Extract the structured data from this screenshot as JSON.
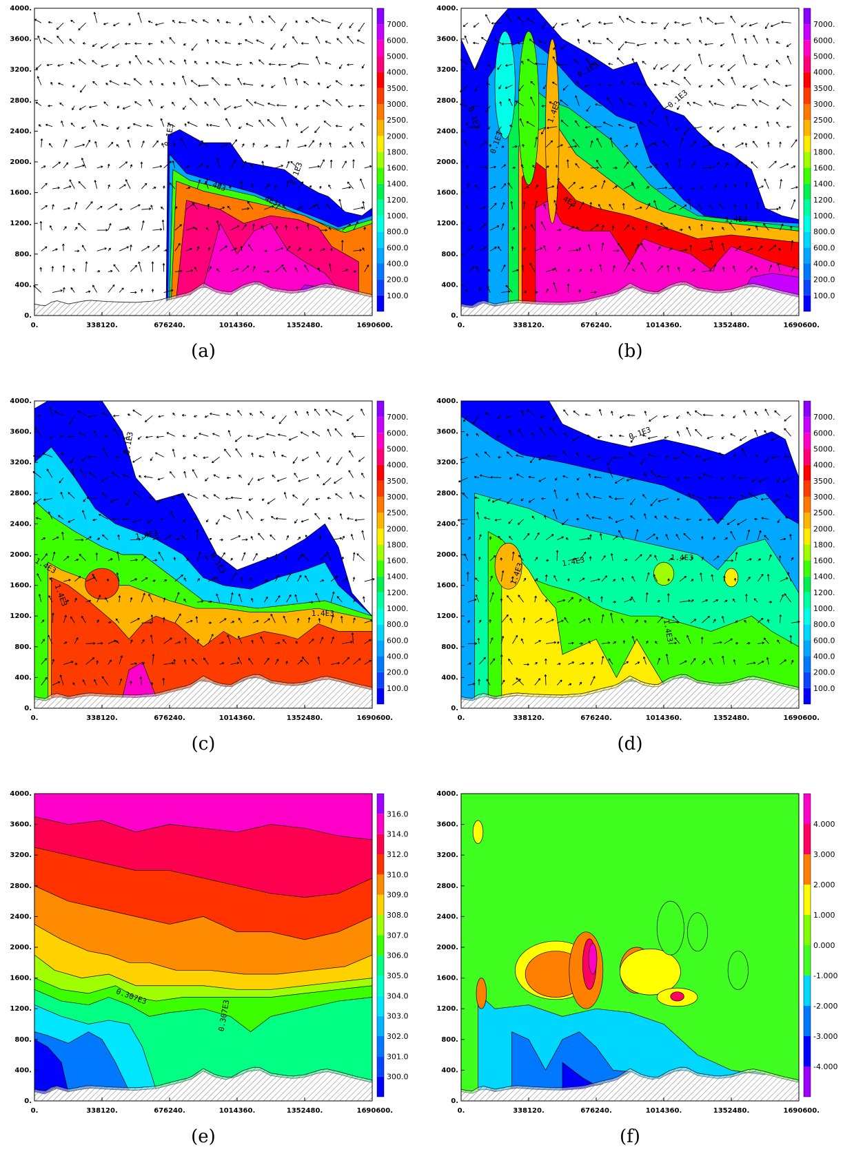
{
  "chart_data": [
    {
      "panel": "(a)",
      "type": "heatmap",
      "x_ticks": [
        "0.",
        "338120.",
        "676240.",
        "1014360.",
        "1352480.",
        "1690600."
      ],
      "y_ticks": [
        "0.",
        "400.",
        "800.",
        "1200.",
        "1600.",
        "2000.",
        "2400.",
        "2800.",
        "3200.",
        "3600.",
        "4000."
      ],
      "xlim": [
        0,
        1690600
      ],
      "ylim": [
        0,
        4000
      ],
      "colorbar": [
        "100.0",
        "200.0",
        "400.0",
        "600.0",
        "800.0",
        "1000.",
        "1200.",
        "1400.",
        "1600.",
        "1800.",
        "2000.",
        "2500.",
        "3000.",
        "3500.",
        "4000.",
        "5000.",
        "6000.",
        "7000."
      ],
      "contour_labels": [
        "0.1E3",
        "0.1E3",
        "1.4E3",
        "4E3"
      ],
      "vectors": true
    },
    {
      "panel": "(b)",
      "type": "heatmap",
      "x_ticks": [
        "0.",
        "338120.",
        "676240.",
        "1014360.",
        "1352480.",
        "1690600."
      ],
      "y_ticks": [
        "0.",
        "400.",
        "800.",
        "1200.",
        "1600.",
        "2000.",
        "2400.",
        "2800.",
        "3200.",
        "3600.",
        "4000."
      ],
      "xlim": [
        0,
        1690600
      ],
      "ylim": [
        0,
        4000
      ],
      "colorbar": [
        "100.0",
        "200.0",
        "400.0",
        "600.0",
        "800.0",
        "1000.",
        "1200.",
        "1400.",
        "1600.",
        "1800.",
        "2000.",
        "2500.",
        "3000.",
        "3500.",
        "4000.",
        "5000.",
        "6000.",
        "7000."
      ],
      "contour_labels": [
        "0.1E3",
        "0.1E3",
        "0.1E3",
        "0.1E3",
        "4E3",
        "1.4E3",
        "1.4E3"
      ],
      "vectors": true
    },
    {
      "panel": "(c)",
      "type": "heatmap",
      "x_ticks": [
        "0.",
        "338120.",
        "676240.",
        "1014360.",
        "1352480.",
        "1690600."
      ],
      "y_ticks": [
        "0.",
        "400.",
        "800.",
        "1200.",
        "1600.",
        "2000.",
        "2400.",
        "2800.",
        "3200.",
        "3600.",
        "4000."
      ],
      "xlim": [
        0,
        1690600
      ],
      "ylim": [
        0,
        4000
      ],
      "colorbar": [
        "100.0",
        "200.0",
        "400.0",
        "600.0",
        "800.0",
        "1000.",
        "1200.",
        "1400.",
        "1600.",
        "1800.",
        "2000.",
        "2500.",
        "3000.",
        "3500.",
        "4000.",
        "5000.",
        "6000.",
        "7000."
      ],
      "contour_labels": [
        "0.1E3",
        "0.1E3",
        "1.4E3",
        "1.4E3",
        "1.4E3",
        "1.4E3"
      ],
      "vectors": true
    },
    {
      "panel": "(d)",
      "type": "heatmap",
      "x_ticks": [
        "0.",
        "338120.",
        "676240.",
        "1014360.",
        "1352480.",
        "1690600."
      ],
      "y_ticks": [
        "0.",
        "400.",
        "800.",
        "1200.",
        "1600.",
        "2000.",
        "2400.",
        "2800.",
        "3200.",
        "3600.",
        "4000."
      ],
      "xlim": [
        0,
        1690600
      ],
      "ylim": [
        0,
        4000
      ],
      "colorbar": [
        "100.0",
        "200.0",
        "400.0",
        "600.0",
        "800.0",
        "1000.",
        "1200.",
        "1400.",
        "1600.",
        "1800.",
        "2000.",
        "2500.",
        "3000.",
        "3500.",
        "4000.",
        "5000.",
        "6000.",
        "7000."
      ],
      "contour_labels": [
        "0.1E3",
        "1.4E3",
        "1.4E3",
        "1.4E3",
        "1.4E3"
      ],
      "vectors": true
    },
    {
      "panel": "(e)",
      "type": "heatmap",
      "x_ticks": [
        "0.",
        "338120.",
        "676240.",
        "1014360.",
        "1352480.",
        "1690600."
      ],
      "y_ticks": [
        "0.",
        "400.",
        "800.",
        "1200.",
        "1600.",
        "2000.",
        "2400.",
        "2800.",
        "3200.",
        "3600.",
        "4000."
      ],
      "xlim": [
        0,
        1690600
      ],
      "ylim": [
        0,
        4000
      ],
      "colorbar": [
        "300.0",
        "301.0",
        "302.0",
        "303.0",
        "304.0",
        "305.0",
        "306.0",
        "307.0",
        "308.0",
        "309.0",
        "310.0",
        "312.0",
        "314.0",
        "316.0"
      ],
      "contour_labels": [
        "0.307E3",
        "0.307E3"
      ],
      "vectors": false
    },
    {
      "panel": "(f)",
      "type": "heatmap",
      "x_ticks": [
        "0.",
        "338120.",
        "676240.",
        "1014360.",
        "1352480.",
        "1690600."
      ],
      "y_ticks": [
        "0.",
        "400.",
        "800.",
        "1200.",
        "1600.",
        "2000.",
        "2400.",
        "2800.",
        "3200.",
        "3600.",
        "4000."
      ],
      "xlim": [
        0,
        1690600
      ],
      "ylim": [
        0,
        4000
      ],
      "colorbar": [
        "-4.000",
        "-3.000",
        "-2.000",
        "-1.000",
        "0.000",
        "1.000",
        "2.000",
        "3.000",
        "4.000"
      ],
      "contour_labels": [],
      "vectors": false
    }
  ],
  "colors": {
    "scale18": [
      "#0000ff",
      "#0a46ff",
      "#0078ff",
      "#00a8ff",
      "#00d7ff",
      "#00ffe6",
      "#00ffa0",
      "#00f050",
      "#3cff00",
      "#a0ff00",
      "#ffee00",
      "#ffb400",
      "#ff7800",
      "#ff3c00",
      "#ff0000",
      "#ff0078",
      "#ff00c8",
      "#c800ff",
      "#8c00ff"
    ],
    "scale14": [
      "#0000ff",
      "#0046ff",
      "#0078ff",
      "#00b4ff",
      "#00e6ff",
      "#00ffc8",
      "#00ff82",
      "#3cff00",
      "#a0ff00",
      "#ffd200",
      "#ff8c00",
      "#ff3200",
      "#ff0050",
      "#ff00c8",
      "#a000ff"
    ],
    "scale9": [
      "#9b00ff",
      "#0000ff",
      "#0078ff",
      "#00d7ff",
      "#40ff20",
      "#80ff00",
      "#ffff00",
      "#ff8000",
      "#ff0060",
      "#ff00c8"
    ]
  }
}
